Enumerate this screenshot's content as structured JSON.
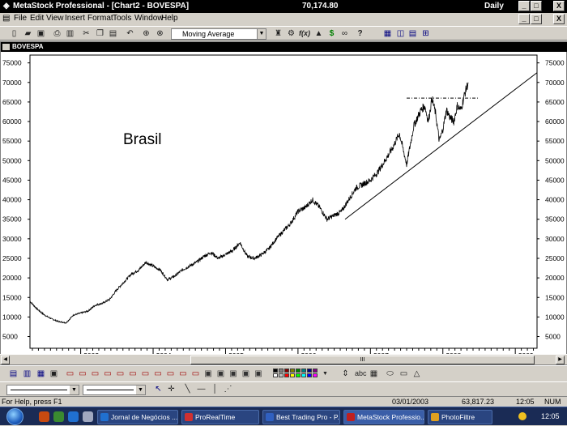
{
  "window": {
    "app_title": "MetaStock Professional - [Chart2 - BOVESPA]",
    "last_value": "70,174.80",
    "periodicity": "Daily",
    "min_label": "_",
    "max_label": "□",
    "close_label": "X"
  },
  "menu": [
    "File",
    "Edit",
    "View",
    "Insert",
    "Format",
    "Tools",
    "Window",
    "Help"
  ],
  "toolbar": {
    "indicator_select": "Moving Average",
    "icons": [
      "new-icon",
      "open-icon",
      "save-icon",
      "print-icon",
      "print-preview-icon",
      "cut-icon",
      "copy-icon",
      "paste-icon",
      "undo-icon",
      "crosshair-icon",
      "zoom-icon",
      "indicator-icon",
      "expert-advisor-icon",
      "formula-icon",
      "explorer-icon",
      "dollar-icon",
      "binoculars-icon",
      "help-icon",
      "chart-window-icon",
      "tile-vertical-icon",
      "tile-horizontal-icon",
      "tile-grid-icon"
    ],
    "formula_text": "f(x)"
  },
  "chart": {
    "security": "BOVESPA",
    "annotation": "Brasil"
  },
  "chart_data": {
    "type": "line",
    "title": "BOVESPA",
    "annotation": "Brasil",
    "y_ticks": [
      5000,
      10000,
      15000,
      20000,
      25000,
      30000,
      35000,
      40000,
      45000,
      50000,
      55000,
      60000,
      65000,
      70000,
      75000
    ],
    "ylim": [
      2000,
      77000
    ],
    "x_year_labels": [
      "2003",
      "2004",
      "2005",
      "2006",
      "2007",
      "2008",
      "2009"
    ],
    "xlim": [
      2002.3,
      2009.3
    ],
    "series": [
      {
        "x": [
          2002.3,
          2002.4,
          2002.5,
          2002.6,
          2002.7,
          2002.8,
          2002.9,
          2003.0,
          2003.1,
          2003.2,
          2003.3,
          2003.4,
          2003.5,
          2003.6,
          2003.7,
          2003.8,
          2003.9,
          2004.0,
          2004.1,
          2004.2,
          2004.3,
          2004.4,
          2004.5,
          2004.6,
          2004.7,
          2004.8,
          2004.9,
          2005.0,
          2005.1,
          2005.2,
          2005.3,
          2005.4,
          2005.5,
          2005.6,
          2005.7,
          2005.8,
          2005.9,
          2006.0,
          2006.1,
          2006.2,
          2006.3,
          2006.4,
          2006.5,
          2006.6,
          2006.7,
          2006.8,
          2006.9,
          2007.0,
          2007.1,
          2007.2,
          2007.3,
          2007.4,
          2007.5,
          2007.6,
          2007.7,
          2007.75,
          2007.8,
          2007.85,
          2007.9,
          2007.95,
          2008.0,
          2008.05,
          2008.1,
          2008.15,
          2008.2,
          2008.25,
          2008.3,
          2008.35
        ],
        "values": [
          14000,
          12000,
          10500,
          9500,
          8800,
          8500,
          10500,
          11000,
          11500,
          13000,
          13500,
          14500,
          17000,
          19000,
          21000,
          22000,
          24000,
          23000,
          22000,
          19500,
          20500,
          22000,
          23000,
          24000,
          25500,
          26500,
          25000,
          26000,
          27000,
          29000,
          25500,
          25000,
          26000,
          27500,
          30000,
          32000,
          34000,
          37000,
          38000,
          40000,
          38000,
          35000,
          36000,
          37000,
          40000,
          43000,
          44000,
          45000,
          47000,
          50000,
          53000,
          57000,
          49000,
          59000,
          63000,
          64000,
          60000,
          66000,
          62000,
          55000,
          58000,
          63000,
          61000,
          60000,
          64000,
          63000,
          67000,
          70000
        ]
      }
    ],
    "support_trendline": {
      "x": [
        2006.65,
        2009.3
      ],
      "values": [
        35000,
        72500
      ]
    },
    "resistance_level": {
      "x": [
        2007.5,
        2008.5
      ],
      "values": [
        66000,
        66000
      ]
    }
  },
  "scrollbar": {
    "thumb_label": "III"
  },
  "drawing_tools": [
    "select-icon",
    "crosshair-tool-icon",
    "trendline-icon",
    "horizontal-line-icon",
    "vertical-line-icon",
    "cycle-line-icon"
  ],
  "colors": {
    "palette": [
      "#000000",
      "#808080",
      "#800000",
      "#808000",
      "#008000",
      "#008080",
      "#000080",
      "#800080",
      "#ffffff",
      "#c0c0c0",
      "#ff0000",
      "#ffff00",
      "#00ff00",
      "#00ffff",
      "#0000ff",
      "#ff00ff"
    ]
  },
  "text_tools": {
    "label": "abc"
  },
  "status": {
    "help": "For Help, press F1",
    "date": "03/01/2003",
    "value": "63,817.23",
    "time": "12:05",
    "mode": "NUM"
  },
  "taskbar": {
    "tasks": [
      "Jornal de Negócios ...",
      "ProRealTime",
      "Best Trading Pro - P...",
      "MetaStock Professio...",
      "PhotoFiltre"
    ],
    "clock": "12:05"
  }
}
